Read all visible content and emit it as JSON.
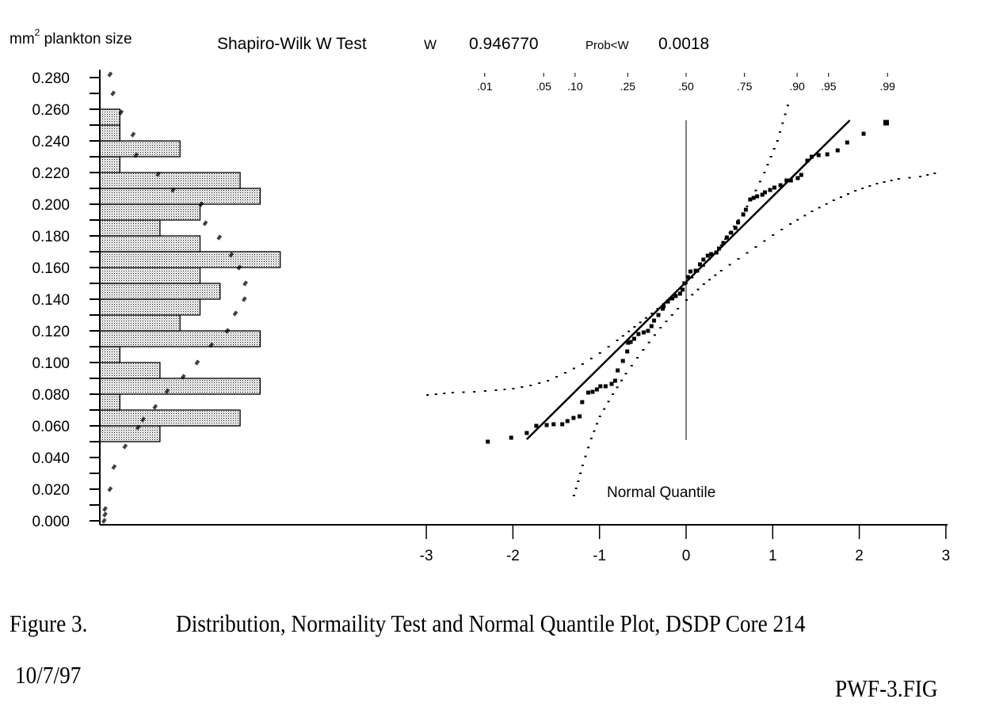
{
  "figure": {
    "caption_label": "Figure 3.",
    "caption_text": "Distribution, Normaility Test and Normal Quantile Plot, DSDP Core 214",
    "date": "10/7/97",
    "file_name": "PWF-3.FIG"
  },
  "stats": {
    "test_name": "Shapiro-Wilk W Test",
    "w_label": "W",
    "w_value": "0.946770",
    "prob_label": "Prob<W",
    "prob_value": "0.0018"
  },
  "colors": {
    "ink": "#000000",
    "bar_fill": "#d9d9d9",
    "background": "#ffffff"
  },
  "chart_data": [
    {
      "type": "bar",
      "orientation": "horizontal",
      "title": "Distribution",
      "ylabel": "mm² plankton size",
      "ylabel_base": "mm",
      "ylabel_sup": "2",
      "ylabel_rest": " plankton size",
      "ylim": [
        0,
        0.28
      ],
      "ytick_values": [
        0.0,
        0.02,
        0.04,
        0.06,
        0.08,
        0.1,
        0.12,
        0.14,
        0.16,
        0.18,
        0.2,
        0.22,
        0.24,
        0.26,
        0.28
      ],
      "ytick_labels": [
        "0.000",
        "0.020",
        "0.040",
        "0.060",
        "0.080",
        "0.100",
        "0.120",
        "0.140",
        "0.160",
        "0.180",
        "0.200",
        "0.220",
        "0.240",
        "0.260",
        "0.280"
      ],
      "minor_tick_step": 0.01,
      "bin_width": 0.01,
      "bins": [
        {
          "from": 0.05,
          "to": 0.06,
          "count": 3
        },
        {
          "from": 0.06,
          "to": 0.07,
          "count": 7
        },
        {
          "from": 0.07,
          "to": 0.08,
          "count": 1
        },
        {
          "from": 0.08,
          "to": 0.09,
          "count": 8
        },
        {
          "from": 0.09,
          "to": 0.1,
          "count": 3
        },
        {
          "from": 0.1,
          "to": 0.11,
          "count": 1
        },
        {
          "from": 0.11,
          "to": 0.12,
          "count": 8
        },
        {
          "from": 0.12,
          "to": 0.13,
          "count": 4
        },
        {
          "from": 0.13,
          "to": 0.14,
          "count": 5
        },
        {
          "from": 0.14,
          "to": 0.15,
          "count": 6
        },
        {
          "from": 0.15,
          "to": 0.16,
          "count": 5
        },
        {
          "from": 0.16,
          "to": 0.17,
          "count": 9
        },
        {
          "from": 0.17,
          "to": 0.18,
          "count": 5
        },
        {
          "from": 0.18,
          "to": 0.19,
          "count": 3
        },
        {
          "from": 0.19,
          "to": 0.2,
          "count": 5
        },
        {
          "from": 0.2,
          "to": 0.21,
          "count": 8
        },
        {
          "from": 0.21,
          "to": 0.22,
          "count": 7
        },
        {
          "from": 0.22,
          "to": 0.23,
          "count": 1
        },
        {
          "from": 0.23,
          "to": 0.24,
          "count": 4
        },
        {
          "from": 0.24,
          "to": 0.25,
          "count": 1
        },
        {
          "from": 0.25,
          "to": 0.26,
          "count": 1
        }
      ],
      "count_max": 9,
      "normal_curve": {
        "mean": 0.1506,
        "sd": 0.0539,
        "y": [
          0.0,
          0.004,
          0.0075,
          0.02,
          0.034,
          0.047,
          0.059,
          0.064,
          0.072,
          0.082,
          0.091,
          0.1,
          0.111,
          0.12,
          0.131,
          0.14,
          0.15,
          0.16,
          0.168,
          0.179,
          0.188,
          0.2,
          0.209,
          0.219,
          0.231,
          0.244,
          0.258,
          0.27,
          0.282
        ],
        "count_equiv": [
          0.05,
          0.1,
          0.1,
          0.35,
          0.55,
          1.1,
          1.75,
          2.0,
          2.6,
          3.2,
          4.0,
          4.7,
          5.4,
          6.2,
          6.6,
          7.05,
          7.1,
          6.8,
          6.4,
          5.8,
          5.1,
          4.9,
          3.5,
          2.75,
          1.65,
          1.5,
          0.9,
          0.5,
          0.35
        ]
      }
    },
    {
      "type": "scatter",
      "title": "Normal Quantile Plot",
      "xlabel": "Normal Quantile",
      "xlim": [
        -3,
        3
      ],
      "ylim": [
        0,
        0.28
      ],
      "xtick_values": [
        -3,
        -2,
        -1,
        0,
        1,
        2,
        3
      ],
      "xtick_labels": [
        "-3",
        "-2",
        "-1",
        "0",
        "1",
        "2",
        "3"
      ],
      "prob_axis": {
        "labels": [
          ".01",
          ".05",
          ".10",
          ".25",
          ".50",
          ".75",
          ".90",
          ".95",
          ".99"
        ],
        "probabilities": [
          0.01,
          0.05,
          0.1,
          0.25,
          0.5,
          0.75,
          0.9,
          0.95,
          0.99
        ],
        "quantiles": [
          -2.326,
          -1.645,
          -1.282,
          -0.674,
          0.0,
          0.674,
          1.282,
          1.645,
          2.326
        ]
      },
      "points": [
        [
          -2.29,
          0.05
        ],
        [
          -2.02,
          0.0525
        ],
        [
          -1.84,
          0.0555
        ],
        [
          -1.73,
          0.06
        ],
        [
          -1.61,
          0.0605
        ],
        [
          -1.53,
          0.061
        ],
        [
          -1.43,
          0.061
        ],
        [
          -1.37,
          0.063
        ],
        [
          -1.3,
          0.065
        ],
        [
          -1.23,
          0.066
        ],
        [
          -1.2,
          0.075
        ],
        [
          -1.13,
          0.081
        ],
        [
          -1.08,
          0.0815
        ],
        [
          -1.03,
          0.083
        ],
        [
          -0.99,
          0.085
        ],
        [
          -0.93,
          0.085
        ],
        [
          -0.86,
          0.0865
        ],
        [
          -0.82,
          0.0885
        ],
        [
          -0.79,
          0.095
        ],
        [
          -0.73,
          0.101
        ],
        [
          -0.68,
          0.107
        ],
        [
          -0.67,
          0.1125
        ],
        [
          -0.64,
          0.113
        ],
        [
          -0.6,
          0.115
        ],
        [
          -0.55,
          0.118
        ],
        [
          -0.49,
          0.119
        ],
        [
          -0.44,
          0.12
        ],
        [
          -0.4,
          0.123
        ],
        [
          -0.37,
          0.1265
        ],
        [
          -0.32,
          0.13
        ],
        [
          -0.27,
          0.134
        ],
        [
          -0.26,
          0.1355
        ],
        [
          -0.21,
          0.1385
        ],
        [
          -0.16,
          0.1405
        ],
        [
          -0.12,
          0.142
        ],
        [
          -0.07,
          0.1435
        ],
        [
          -0.04,
          0.146
        ],
        [
          -0.02,
          0.15
        ],
        [
          0.02,
          0.154
        ],
        [
          0.05,
          0.1575
        ],
        [
          0.11,
          0.158
        ],
        [
          0.16,
          0.162
        ],
        [
          0.2,
          0.165
        ],
        [
          0.25,
          0.1675
        ],
        [
          0.29,
          0.1685
        ],
        [
          0.35,
          0.1695
        ],
        [
          0.38,
          0.172
        ],
        [
          0.43,
          0.1755
        ],
        [
          0.47,
          0.179
        ],
        [
          0.52,
          0.182
        ],
        [
          0.57,
          0.185
        ],
        [
          0.6,
          0.1885
        ],
        [
          0.66,
          0.1935
        ],
        [
          0.69,
          0.1965
        ],
        [
          0.74,
          0.203
        ],
        [
          0.78,
          0.204
        ],
        [
          0.82,
          0.205
        ],
        [
          0.88,
          0.206
        ],
        [
          0.91,
          0.2075
        ],
        [
          0.97,
          0.209
        ],
        [
          1.02,
          0.2105
        ],
        [
          1.09,
          0.212
        ],
        [
          1.16,
          0.215
        ],
        [
          1.21,
          0.215
        ],
        [
          1.29,
          0.2165
        ],
        [
          1.33,
          0.2185
        ],
        [
          1.4,
          0.2275
        ],
        [
          1.45,
          0.23
        ],
        [
          1.53,
          0.231
        ],
        [
          1.63,
          0.2315
        ],
        [
          1.75,
          0.234
        ],
        [
          1.86,
          0.239
        ],
        [
          2.05,
          0.2445
        ],
        [
          2.31,
          0.2515
        ]
      ],
      "reference_line": {
        "x": [
          -1.84,
          1.89
        ],
        "y": [
          0.0515,
          0.253
        ]
      },
      "zero_line": {
        "x": 0,
        "y": [
          0.051,
          0.253
        ]
      },
      "confidence_upper": {
        "x": [
          -2.99,
          -2.7,
          -2.45,
          -2.2,
          -2.0,
          -1.8,
          -1.6,
          -1.4,
          -1.2,
          -1.0,
          -0.8,
          -0.6,
          -0.4,
          -0.2,
          0.0,
          0.2,
          0.4,
          0.6,
          0.75,
          0.9,
          1.05,
          1.2
        ],
        "y": [
          0.0795,
          0.081,
          0.0815,
          0.0825,
          0.0835,
          0.0855,
          0.0885,
          0.0935,
          0.099,
          0.106,
          0.114,
          0.1225,
          0.131,
          0.14,
          0.15,
          0.161,
          0.174,
          0.19,
          0.203,
          0.22,
          0.24,
          0.268
        ]
      },
      "confidence_lower": {
        "x": [
          -1.3,
          -1.25,
          -1.2,
          -1.1,
          -1.0,
          -0.85,
          -0.7,
          -0.5,
          -0.3,
          -0.1,
          0.0,
          0.2,
          0.4,
          0.6,
          0.8,
          1.0,
          1.2,
          1.45,
          1.7,
          1.95,
          2.2,
          2.45,
          2.7,
          2.95
        ],
        "y": [
          0.016,
          0.025,
          0.035,
          0.052,
          0.066,
          0.08,
          0.093,
          0.108,
          0.122,
          0.134,
          0.1395,
          0.1495,
          0.158,
          0.1655,
          0.173,
          0.1805,
          0.1875,
          0.1955,
          0.2025,
          0.2085,
          0.213,
          0.216,
          0.2175,
          0.2205
        ]
      }
    }
  ]
}
